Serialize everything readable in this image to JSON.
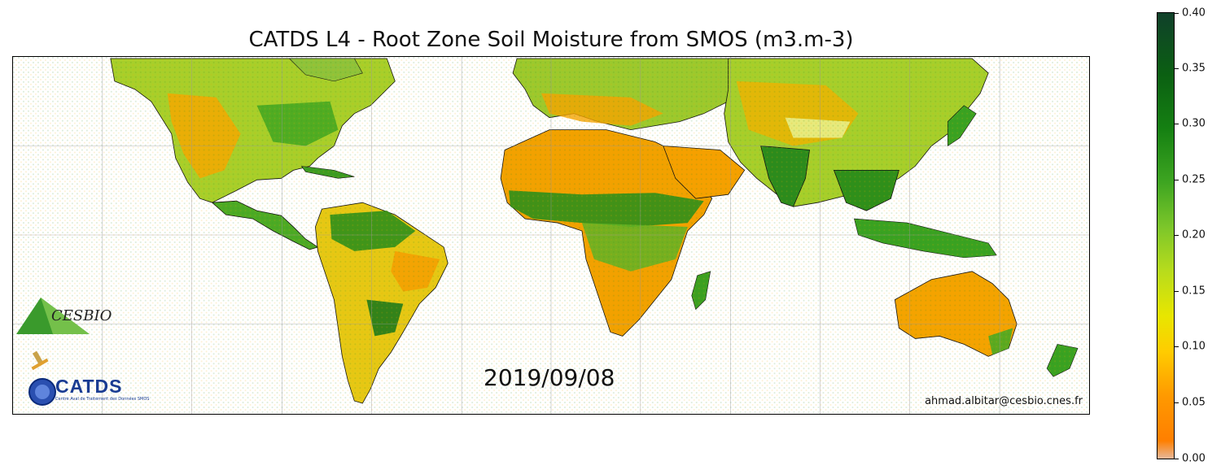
{
  "map": {
    "title": "CATDS L4 - Root Zone Soil Moisture from SMOS (m3.m-3)",
    "date": "2019/09/08",
    "credit": "ahmad.albitar@cesbio.cnes.fr"
  },
  "logos": {
    "cesbio": "CESBIO",
    "catds": "CATDS",
    "catds_subtitle": "Centre Aval de Traitement des Données SMOS"
  },
  "colorbar": {
    "min": 0.0,
    "max": 0.4,
    "tick_labels": [
      "0.00",
      "0.05",
      "0.10",
      "0.15",
      "0.20",
      "0.25",
      "0.30",
      "0.35",
      "0.40"
    ],
    "colors": {
      "dry": "#ff7f00",
      "mid": "#e8e600",
      "wet": "#10402a"
    }
  }
}
